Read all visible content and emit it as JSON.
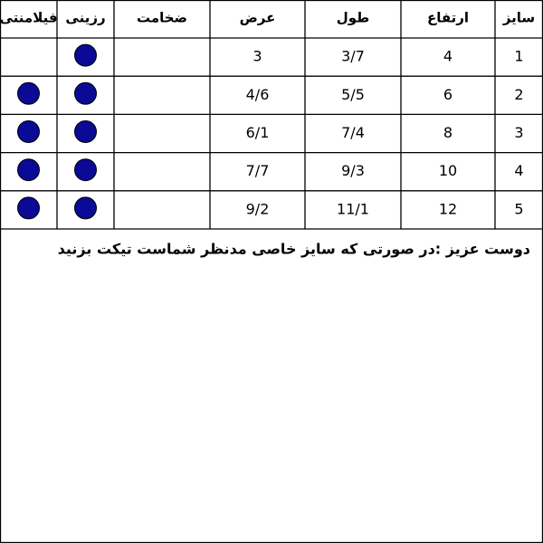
{
  "table": {
    "header": [
      "سایز",
      "ارتفاع",
      "طول",
      "عرض",
      "ضخامت",
      "رزینی",
      "فیلامنتی"
    ],
    "rows": [
      [
        1,
        4,
        "3/7",
        3,
        null,
        true,
        false
      ],
      [
        2,
        6,
        "5/5",
        "4/6",
        null,
        true,
        true
      ],
      [
        3,
        8,
        "7/4",
        "6/1",
        null,
        true,
        true
      ],
      [
        4,
        10,
        "9/3",
        "7/7",
        null,
        true,
        true
      ],
      [
        5,
        12,
        "11/1",
        "9/2",
        null,
        true,
        true
      ]
    ]
  },
  "note": "دوست عزیز :در صورتی که سایز خاصی مدنظر شماست تیکت بزنید"
}
